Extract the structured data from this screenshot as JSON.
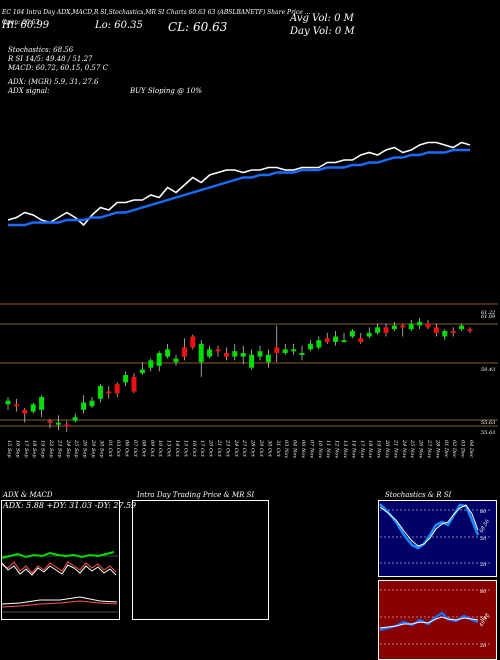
{
  "header": {
    "line1": "EC 104 Intra Day ADX,MACD,R      SI,Stochastics,MR      SI Charts 60.63      63      (ABSLBANETF) Share Price ...",
    "open": "Open: 60.63",
    "hi": "Hi: 60.99",
    "lo": "Lo: 60.35",
    "cl": "CL: 60.63",
    "avg_vol": "Avg Vol: 0   M",
    "day_vol": "Day Vol: 0   M",
    "summary": [
      "Stochastics: 68.56",
      "R         SI 14/5: 49.48 / 51.27",
      "MACD: 60.72, 60.15, 0.57 C"
    ],
    "adx_line": "ADX:                    (MGR) 5.9, 31, 27.6",
    "adx_signal_label": "ADX  signal:",
    "adx_signal_value": "BUY Sloping @ 10%"
  },
  "price_labels": [
    "61.22",
    "61.09",
    "59.43",
    "55.63",
    "55.63"
  ],
  "dates": [
    "15 Sep",
    "16 Sep",
    "17 Sep",
    "18 Sep",
    "19 Sep",
    "22 Sep",
    "23 Sep",
    "24 Sep",
    "25 Sep",
    "26 Sep",
    "29 Sep",
    "30 Sep",
    "01 Oct",
    "03 Oct",
    "06 Oct",
    "07 Oct",
    "08 Oct",
    "09 Oct",
    "10 Oct",
    "13 Oct",
    "14 Oct",
    "15 Oct",
    "16 Oct",
    "17 Oct",
    "20 Oct",
    "21 Oct",
    "23 Oct",
    "24 Oct",
    "27 Oct",
    "28 Oct",
    "29 Oct",
    "30 Oct",
    "31 Oct",
    "03 Nov",
    "04 Nov",
    "06 Nov",
    "07 Nov",
    "10 Nov",
    "11 Nov",
    "12 Nov",
    "13 Nov",
    "14 Nov",
    "17 Nov",
    "18 Nov",
    "19 Nov",
    "20 Nov",
    "21 Nov",
    "24 Nov",
    "25 Nov",
    "26 Nov",
    "27 Nov",
    "28 Nov",
    "01 Dec",
    "02 Dec",
    "03 Dec",
    "04 Dec"
  ],
  "panels": {
    "adx": {
      "title": "ADX  & MACD",
      "values": "ADX: 5.88  +DY: 31.03 -DY: 27.59"
    },
    "intra": {
      "title": "Intra  Day Trading Price  & MR                SI"
    },
    "stoch": {
      "title": "Stochastics & R                 SI",
      "labels": [
        "80",
        "50",
        "20"
      ],
      "value": "68.56"
    },
    "rsi": {
      "labels": [
        "80",
        "50",
        "20"
      ],
      "value": "49.48"
    }
  },
  "colors": {
    "up": "#00dd00",
    "down": "#ee1111",
    "ema": "#1a6cff",
    "price": "#ffffff",
    "grid": "#8b5a2b"
  },
  "chart_data": {
    "type": "line",
    "series": [
      {
        "values": [
          57.9,
          58.0,
          58.2,
          58.1,
          57.9,
          57.8,
          58.0,
          58.2,
          58.0,
          57.7,
          58.1,
          58.4,
          58.3,
          58.6,
          58.6,
          58.7,
          58.7,
          58.9,
          58.8,
          59.2,
          59.0,
          59.3,
          59.6,
          59.4,
          59.7,
          59.8,
          59.9,
          59.9,
          59.8,
          59.9,
          59.9,
          60.0,
          60.0,
          59.9,
          59.9,
          60.0,
          60.0,
          60.0,
          60.2,
          60.2,
          60.3,
          60.3,
          60.5,
          60.6,
          60.5,
          60.7,
          60.8,
          60.6,
          60.7,
          60.9,
          61.0,
          61.0,
          60.9,
          60.8,
          61.0,
          60.9
        ]
      },
      {
        "values": [
          57.7,
          57.7,
          57.7,
          57.8,
          57.8,
          57.8,
          57.8,
          57.9,
          57.9,
          57.9,
          58.0,
          58.0,
          58.1,
          58.2,
          58.2,
          58.3,
          58.4,
          58.5,
          58.6,
          58.7,
          58.8,
          58.9,
          59.0,
          59.1,
          59.2,
          59.3,
          59.4,
          59.5,
          59.6,
          59.6,
          59.7,
          59.7,
          59.8,
          59.8,
          59.8,
          59.9,
          59.9,
          59.9,
          60.0,
          60.0,
          60.0,
          60.1,
          60.1,
          60.2,
          60.2,
          60.3,
          60.4,
          60.4,
          60.5,
          60.5,
          60.6,
          60.6,
          60.6,
          60.7,
          60.7,
          60.7
        ]
      }
    ],
    "candles": [
      {
        "o": 56.9,
        "c": 57.1,
        "h": 57.3,
        "l": 56.6,
        "up": true
      },
      {
        "o": 56.9,
        "c": 56.8,
        "h": 57.2,
        "l": 56.5,
        "up": false
      },
      {
        "o": 56.6,
        "c": 56.4,
        "h": 56.7,
        "l": 55.9,
        "up": false
      },
      {
        "o": 56.5,
        "c": 56.9,
        "h": 57.0,
        "l": 56.4,
        "up": true
      },
      {
        "o": 56.6,
        "c": 57.3,
        "h": 57.4,
        "l": 56.2,
        "up": true
      },
      {
        "o": 56.0,
        "c": 55.9,
        "h": 56.1,
        "l": 55.6,
        "up": false
      },
      {
        "o": 55.8,
        "c": 55.9,
        "h": 56.3,
        "l": 55.5,
        "up": true
      },
      {
        "o": 55.8,
        "c": 55.7,
        "h": 56.0,
        "l": 55.4,
        "up": false
      },
      {
        "o": 56.0,
        "c": 56.2,
        "h": 56.4,
        "l": 55.9,
        "up": true
      },
      {
        "o": 56.6,
        "c": 57.0,
        "h": 57.4,
        "l": 56.4,
        "up": true
      },
      {
        "o": 56.8,
        "c": 57.1,
        "h": 57.3,
        "l": 56.7,
        "up": true
      },
      {
        "o": 57.2,
        "c": 57.9,
        "h": 58.0,
        "l": 57.0,
        "up": true
      },
      {
        "o": 57.6,
        "c": 57.5,
        "h": 57.9,
        "l": 57.2,
        "up": false
      },
      {
        "o": 58.0,
        "c": 57.5,
        "h": 58.1,
        "l": 57.3,
        "up": false
      },
      {
        "o": 58.1,
        "c": 58.5,
        "h": 58.7,
        "l": 57.9,
        "up": true
      },
      {
        "o": 58.4,
        "c": 57.6,
        "h": 58.6,
        "l": 57.5,
        "up": false
      },
      {
        "o": 58.6,
        "c": 58.8,
        "h": 59.2,
        "l": 58.5,
        "up": true
      },
      {
        "o": 58.9,
        "c": 59.3,
        "h": 59.4,
        "l": 58.7,
        "up": true
      },
      {
        "o": 59.0,
        "c": 59.7,
        "h": 59.8,
        "l": 58.7,
        "up": true
      },
      {
        "o": 59.5,
        "c": 59.9,
        "h": 60.2,
        "l": 59.4,
        "up": true
      },
      {
        "o": 59.2,
        "c": 59.4,
        "h": 59.6,
        "l": 59.0,
        "up": true
      },
      {
        "o": 60.0,
        "c": 59.5,
        "h": 60.5,
        "l": 59.3,
        "up": false
      },
      {
        "o": 60.6,
        "c": 60.0,
        "h": 60.7,
        "l": 59.9,
        "up": false
      },
      {
        "o": 60.2,
        "c": 59.2,
        "h": 60.4,
        "l": 58.4,
        "up": true
      },
      {
        "o": 59.5,
        "c": 59.9,
        "h": 60.1,
        "l": 59.4,
        "up": true
      },
      {
        "o": 59.9,
        "c": 59.8,
        "h": 60.1,
        "l": 59.5,
        "up": false
      },
      {
        "o": 59.7,
        "c": 59.5,
        "h": 60.0,
        "l": 59.3,
        "up": false
      },
      {
        "o": 59.5,
        "c": 59.8,
        "h": 60.2,
        "l": 59.3,
        "up": true
      },
      {
        "o": 59.7,
        "c": 59.5,
        "h": 60.1,
        "l": 59.1,
        "up": true
      },
      {
        "o": 59.6,
        "c": 58.9,
        "h": 59.9,
        "l": 58.8,
        "up": true
      },
      {
        "o": 59.5,
        "c": 59.8,
        "h": 60.1,
        "l": 59.3,
        "up": true
      },
      {
        "o": 59.6,
        "c": 59.2,
        "h": 59.9,
        "l": 58.9,
        "up": true
      },
      {
        "o": 59.7,
        "c": 60.0,
        "h": 61.2,
        "l": 59.2,
        "up": false
      },
      {
        "o": 59.7,
        "c": 59.9,
        "h": 60.2,
        "l": 59.6,
        "up": true
      },
      {
        "o": 59.8,
        "c": 59.9,
        "h": 60.2,
        "l": 59.6,
        "up": true
      },
      {
        "o": 59.6,
        "c": 59.7,
        "h": 60.1,
        "l": 59.3,
        "up": true
      },
      {
        "o": 59.9,
        "c": 60.2,
        "h": 60.4,
        "l": 59.8,
        "up": true
      },
      {
        "o": 60.0,
        "c": 60.4,
        "h": 60.6,
        "l": 59.9,
        "up": true
      },
      {
        "o": 60.5,
        "c": 60.3,
        "h": 60.8,
        "l": 60.2,
        "up": false
      },
      {
        "o": 60.3,
        "c": 60.6,
        "h": 60.9,
        "l": 60.1,
        "up": true
      },
      {
        "o": 60.4,
        "c": 60.4,
        "h": 60.8,
        "l": 60.3,
        "up": true
      },
      {
        "o": 60.6,
        "c": 60.9,
        "h": 61.0,
        "l": 60.5,
        "up": true
      },
      {
        "o": 60.5,
        "c": 60.3,
        "h": 60.8,
        "l": 60.2,
        "up": false
      },
      {
        "o": 60.6,
        "c": 60.8,
        "h": 61.1,
        "l": 60.5,
        "up": true
      },
      {
        "o": 60.8,
        "c": 61.1,
        "h": 61.3,
        "l": 60.7,
        "up": true
      },
      {
        "o": 61.1,
        "c": 60.8,
        "h": 61.3,
        "l": 60.6,
        "up": false
      },
      {
        "o": 61.0,
        "c": 61.2,
        "h": 61.4,
        "l": 60.9,
        "up": true
      },
      {
        "o": 61.2,
        "c": 61.1,
        "h": 61.3,
        "l": 60.6,
        "up": false
      },
      {
        "o": 61.0,
        "c": 61.3,
        "h": 61.5,
        "l": 60.9,
        "up": true
      },
      {
        "o": 61.2,
        "c": 61.4,
        "h": 61.6,
        "l": 61.0,
        "up": true
      },
      {
        "o": 61.3,
        "c": 61.1,
        "h": 61.5,
        "l": 61.0,
        "up": false
      },
      {
        "o": 61.1,
        "c": 60.8,
        "h": 61.3,
        "l": 60.6,
        "up": false
      },
      {
        "o": 60.6,
        "c": 60.9,
        "h": 61.0,
        "l": 60.4,
        "up": true
      },
      {
        "o": 60.9,
        "c": 60.8,
        "h": 61.1,
        "l": 60.6,
        "up": false
      },
      {
        "o": 61.0,
        "c": 61.2,
        "h": 61.3,
        "l": 60.9,
        "up": true
      },
      {
        "o": 61.0,
        "c": 60.9,
        "h": 61.1,
        "l": 60.8,
        "up": false
      }
    ]
  }
}
